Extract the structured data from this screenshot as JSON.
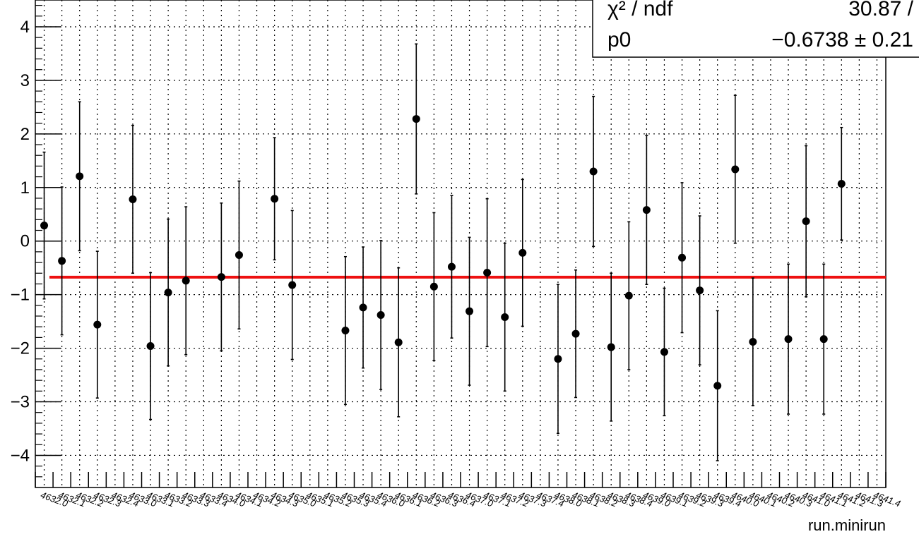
{
  "chart_data": {
    "type": "scatter",
    "xlabel": "run.minirun",
    "ylabel": "",
    "ylim": [
      -4.6,
      4.5
    ],
    "grid": true,
    "y_ticks": [
      "4",
      "3",
      "2",
      "1",
      "0",
      "−1",
      "−2",
      "−3",
      "−4"
    ],
    "x_tick_labels": [
      "4632.0",
      "4632.1",
      "4632.2",
      "4632.3",
      "4632.4",
      "4633.0",
      "4633.1",
      "4633.2",
      "4633.3",
      "4633.4",
      "4634.0",
      "4634.1",
      "4634.2",
      "4634.3",
      "4635.0",
      "4635.1",
      "4635.2",
      "4635.3",
      "4635.4",
      "4636.0",
      "4636.1",
      "4636.2",
      "4636.3",
      "4636.4",
      "4637.0",
      "4637.1",
      "4637.2",
      "4637.3",
      "4637.4",
      "4638.0",
      "4638.1",
      "4638.2",
      "4638.3",
      "4638.4",
      "4639.0",
      "4639.1",
      "4639.2",
      "4639.3",
      "4639.4",
      "4640.0",
      "4640.1",
      "4640.2",
      "4640.3",
      "4641.0",
      "4641.1",
      "4641.2",
      "4641.3",
      "4641.4"
    ],
    "points": [
      {
        "x": 0,
        "y": 0.29,
        "err": 1.37
      },
      {
        "x": 1,
        "y": -0.37,
        "err": 1.38
      },
      {
        "x": 2,
        "y": 1.21,
        "err": 1.39
      },
      {
        "x": 3,
        "y": -1.56,
        "err": 1.37
      },
      {
        "x": 5,
        "y": 0.78,
        "err": 1.38
      },
      {
        "x": 6,
        "y": -1.96,
        "err": 1.37
      },
      {
        "x": 7,
        "y": -0.96,
        "err": 1.37
      },
      {
        "x": 8,
        "y": -0.74,
        "err": 1.38
      },
      {
        "x": 10,
        "y": -0.67,
        "err": 1.38
      },
      {
        "x": 11,
        "y": -0.26,
        "err": 1.38
      },
      {
        "x": 13,
        "y": 0.79,
        "err": 1.14
      },
      {
        "x": 14,
        "y": -0.82,
        "err": 1.39
      },
      {
        "x": 17,
        "y": -1.67,
        "err": 1.38
      },
      {
        "x": 18,
        "y": -1.24,
        "err": 1.13
      },
      {
        "x": 19,
        "y": -1.38,
        "err": 1.39
      },
      {
        "x": 20,
        "y": -1.89,
        "err": 1.39
      },
      {
        "x": 21,
        "y": 2.28,
        "err": 1.4
      },
      {
        "x": 22,
        "y": -0.85,
        "err": 1.38
      },
      {
        "x": 23,
        "y": -0.48,
        "err": 1.33
      },
      {
        "x": 24,
        "y": -1.31,
        "err": 1.38
      },
      {
        "x": 25,
        "y": -0.59,
        "err": 1.38
      },
      {
        "x": 26,
        "y": -1.42,
        "err": 1.38
      },
      {
        "x": 27,
        "y": -0.22,
        "err": 1.37
      },
      {
        "x": 29,
        "y": -2.2,
        "err": 1.39
      },
      {
        "x": 30,
        "y": -1.73,
        "err": 1.19
      },
      {
        "x": 31,
        "y": 1.3,
        "err": 1.4
      },
      {
        "x": 32,
        "y": -1.98,
        "err": 1.38
      },
      {
        "x": 33,
        "y": -1.02,
        "err": 1.38
      },
      {
        "x": 34,
        "y": 0.58,
        "err": 1.39
      },
      {
        "x": 35,
        "y": -2.07,
        "err": 1.19
      },
      {
        "x": 36,
        "y": -0.31,
        "err": 1.4
      },
      {
        "x": 37,
        "y": -0.92,
        "err": 1.39
      },
      {
        "x": 38,
        "y": -2.7,
        "err": 1.4
      },
      {
        "x": 39,
        "y": 1.34,
        "err": 1.38
      },
      {
        "x": 40,
        "y": -1.88,
        "err": 1.19
      },
      {
        "x": 42,
        "y": -1.83,
        "err": 1.4
      },
      {
        "x": 43,
        "y": 0.37,
        "err": 1.41
      },
      {
        "x": 44,
        "y": -1.83,
        "err": 1.4
      },
      {
        "x": 45,
        "y": 1.07,
        "err": 1.05
      }
    ],
    "fit": {
      "p0": -0.6738
    }
  },
  "stats": {
    "chi2_label": "χ² / ndf",
    "chi2_value": "30.87 /",
    "p0_label": "p0",
    "p0_value": "−0.6738 ± 0.21"
  },
  "colors": {
    "fit_line": "#ee1111",
    "marker": "#000000",
    "grid": "#000000"
  }
}
